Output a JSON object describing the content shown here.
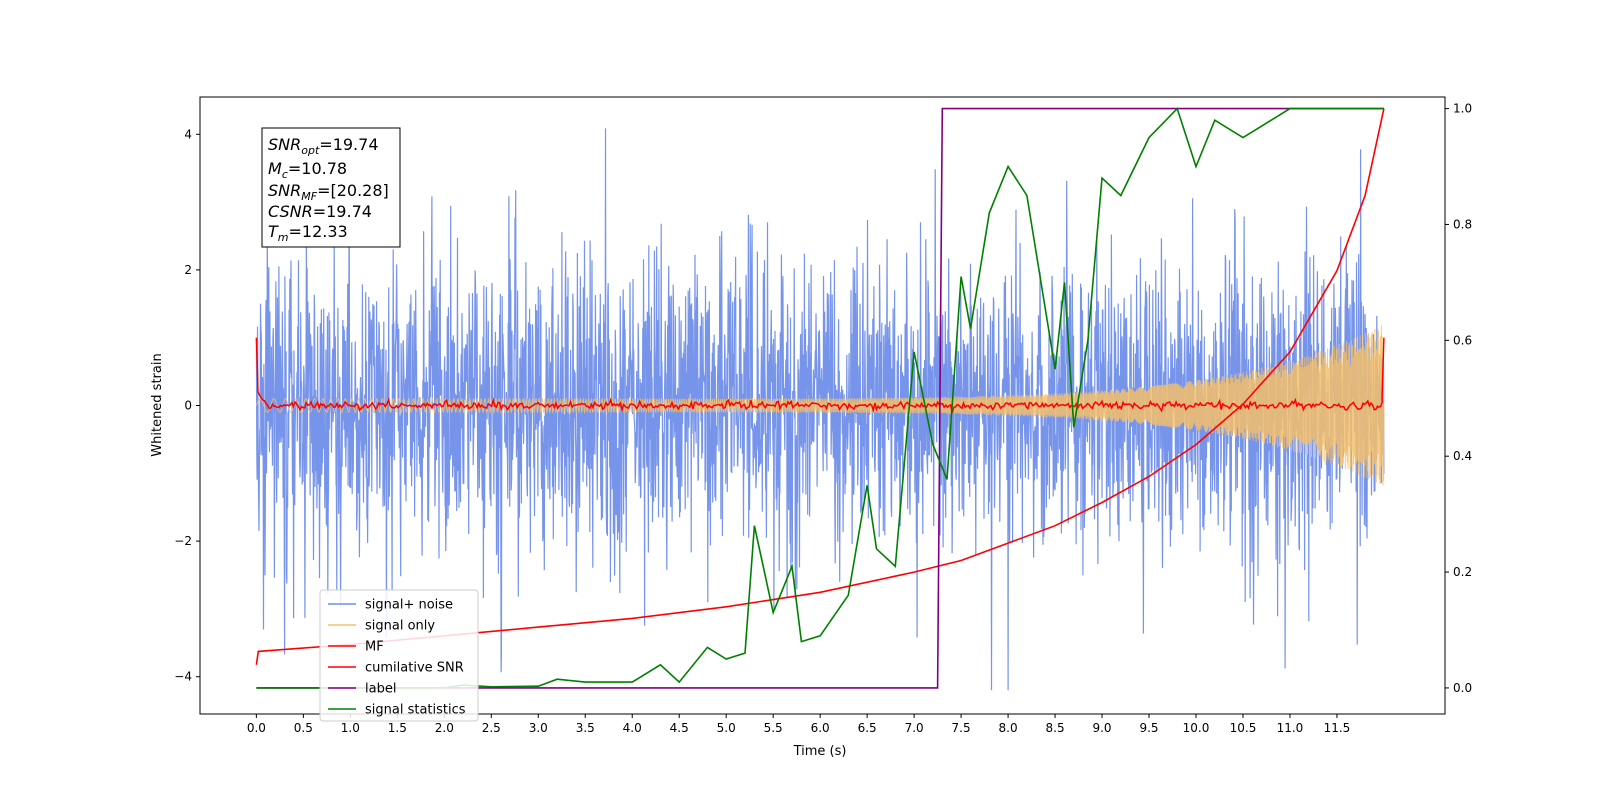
{
  "chart_data": {
    "type": "line",
    "xlabel": "Time (s)",
    "ylabel": "Whitened strain",
    "xlim": [
      -0.6,
      12.65
    ],
    "ylim": [
      -4.55,
      4.55
    ],
    "y2lim": [
      -0.045,
      1.02
    ],
    "x_ticks": [
      "0.0",
      "0.5",
      "1.0",
      "1.5",
      "2.0",
      "2.5",
      "3.0",
      "3.5",
      "4.0",
      "4.5",
      "5.0",
      "5.5",
      "6.0",
      "6.5",
      "7.0",
      "7.5",
      "8.0",
      "8.5",
      "9.0",
      "9.5",
      "10.0",
      "10.5",
      "11.0",
      "11.5"
    ],
    "y_ticks": [
      "4",
      "2",
      "0",
      "−2",
      "−4"
    ],
    "y2_ticks": [
      "1.0",
      "0.8",
      "0.6",
      "0.4",
      "0.2",
      "0.0"
    ],
    "grid": false,
    "legend_position": "lower-left",
    "info_box": {
      "snr_opt": {
        "sym": "SNR",
        "sub": "opt",
        "value": "=19.74"
      },
      "mc": {
        "sym": "M",
        "sub": "c",
        "value": "=10.78"
      },
      "snr_mf": {
        "sym": "SNR",
        "sub": "MF",
        "value": "=[20.28]"
      },
      "csnr": {
        "sym": "CSNR",
        "sub": "",
        "value": "=19.74"
      },
      "tm": {
        "sym": "T",
        "sub": "m",
        "value": "=12.33"
      }
    },
    "series": [
      {
        "name": "signal+ noise",
        "axis": "left",
        "color": "#6f8ee8",
        "style": "noise band, amplitude ±2 to ±3.5 with spikes up to 4.2",
        "t_range": [
          0.0,
          12.0
        ]
      },
      {
        "name": "signal only",
        "axis": "left",
        "color": "#f5c06b",
        "style": "chirp, envelope grows from 0.1 at t=6 to 1.2 at t=12",
        "t_range": [
          0.0,
          12.0
        ]
      },
      {
        "name": "MF",
        "axis": "left",
        "color": "#ff0000",
        "style": "near zero, starts at 1.0 and ends at 1.0",
        "t_range": [
          0.0,
          12.0
        ]
      },
      {
        "name": "cumilative SNR",
        "axis": "right",
        "color": "#ff0000",
        "points": [
          [
            0.0,
            0.04
          ],
          [
            0.02,
            0.063
          ],
          [
            1.0,
            0.075
          ],
          [
            2.0,
            0.09
          ],
          [
            3.0,
            0.105
          ],
          [
            4.0,
            0.12
          ],
          [
            5.0,
            0.14
          ],
          [
            6.0,
            0.165
          ],
          [
            7.0,
            0.2
          ],
          [
            7.5,
            0.22
          ],
          [
            8.0,
            0.25
          ],
          [
            8.5,
            0.28
          ],
          [
            9.0,
            0.32
          ],
          [
            9.5,
            0.365
          ],
          [
            10.0,
            0.42
          ],
          [
            10.5,
            0.49
          ],
          [
            11.0,
            0.58
          ],
          [
            11.5,
            0.72
          ],
          [
            11.8,
            0.85
          ],
          [
            12.0,
            1.0
          ]
        ]
      },
      {
        "name": "label",
        "axis": "right",
        "color": "#800080",
        "points": [
          [
            0.0,
            0.0
          ],
          [
            7.25,
            0.0
          ],
          [
            7.3,
            1.0
          ],
          [
            12.0,
            1.0
          ]
        ]
      },
      {
        "name": "signal statistics",
        "axis": "right",
        "color": "#008000",
        "points": [
          [
            0.0,
            0.0
          ],
          [
            1.0,
            0.0
          ],
          [
            2.0,
            0.0
          ],
          [
            2.2,
            0.005
          ],
          [
            2.5,
            0.002
          ],
          [
            3.0,
            0.003
          ],
          [
            3.2,
            0.015
          ],
          [
            3.5,
            0.01
          ],
          [
            4.0,
            0.01
          ],
          [
            4.3,
            0.04
          ],
          [
            4.5,
            0.01
          ],
          [
            4.8,
            0.07
          ],
          [
            5.0,
            0.05
          ],
          [
            5.2,
            0.06
          ],
          [
            5.3,
            0.28
          ],
          [
            5.5,
            0.13
          ],
          [
            5.7,
            0.21
          ],
          [
            5.8,
            0.08
          ],
          [
            6.0,
            0.09
          ],
          [
            6.3,
            0.16
          ],
          [
            6.5,
            0.35
          ],
          [
            6.6,
            0.24
          ],
          [
            6.8,
            0.21
          ],
          [
            7.0,
            0.58
          ],
          [
            7.2,
            0.42
          ],
          [
            7.35,
            0.36
          ],
          [
            7.5,
            0.71
          ],
          [
            7.6,
            0.62
          ],
          [
            7.8,
            0.82
          ],
          [
            8.0,
            0.9
          ],
          [
            8.2,
            0.85
          ],
          [
            8.5,
            0.55
          ],
          [
            8.6,
            0.7
          ],
          [
            8.7,
            0.45
          ],
          [
            8.85,
            0.6
          ],
          [
            9.0,
            0.88
          ],
          [
            9.2,
            0.85
          ],
          [
            9.5,
            0.95
          ],
          [
            9.8,
            1.0
          ],
          [
            10.0,
            0.9
          ],
          [
            10.2,
            0.98
          ],
          [
            10.5,
            0.95
          ],
          [
            11.0,
            1.0
          ],
          [
            11.5,
            1.0
          ],
          [
            12.0,
            1.0
          ]
        ]
      }
    ]
  }
}
